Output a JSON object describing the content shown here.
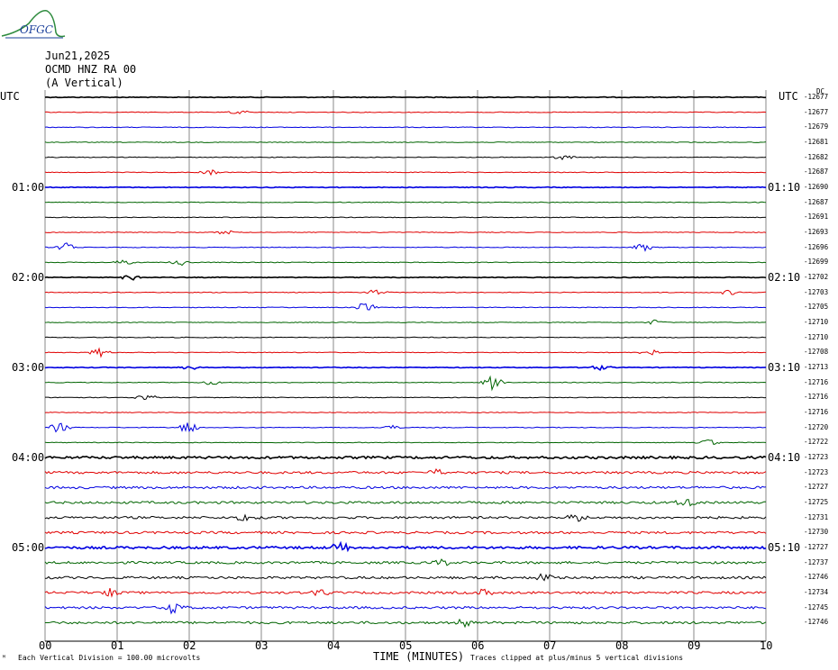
{
  "logo": {
    "text": "OFGC",
    "color": "#1a3f9a",
    "accent": "#2e8b3e"
  },
  "header": {
    "date": "Jun21,2025",
    "station": "OCMD HNZ RA 00",
    "component": "(A Vertical)"
  },
  "utc_left_label": "UTC",
  "utc_right_label": "UTC",
  "dc_label": "DC",
  "left_times": [
    "01:00",
    "02:00",
    "03:00",
    "04:00",
    "05:00"
  ],
  "right_times": [
    "01:10",
    "02:10",
    "03:10",
    "04:10",
    "05:10"
  ],
  "offsets": [
    "-12677",
    "-12677",
    "-12679",
    "-12681",
    "-12682",
    "-12687",
    "-12690",
    "-12687",
    "-12691",
    "-12693",
    "-12696",
    "-12699",
    "-12702",
    "-12703",
    "-12705",
    "-12710",
    "-12710",
    "-12708",
    "-12713",
    "-12716",
    "-12716",
    "-12716",
    "-12720",
    "-12722",
    "-12723",
    "-12723",
    "-12727",
    "-12725",
    "-12731",
    "-12730",
    "-12727",
    "-12737",
    "-12746",
    "-12734",
    "-12745",
    "-12746"
  ],
  "footer": {
    "scale_note": "Each Vertical Division =  100.00 microvolts",
    "axis_label": "TIME (MINUTES)",
    "clip_note": "Traces clipped at plus/minus 5 vertical divisions",
    "corner": "ᴹ"
  },
  "chart_data": {
    "type": "line",
    "title": "",
    "xlabel": "TIME (MINUTES)",
    "xlim": [
      0,
      10
    ],
    "x_ticks": [
      "00",
      "01",
      "02",
      "03",
      "04",
      "05",
      "06",
      "07",
      "08",
      "09",
      "10"
    ],
    "trace_count": 36,
    "trace_colors": [
      "#000000",
      "#e00000",
      "#0000e0",
      "#006400"
    ],
    "grid": true,
    "events": [
      {
        "trace": 1,
        "minute": 2.7,
        "amp": 3
      },
      {
        "trace": 4,
        "minute": 7.2,
        "amp": 3
      },
      {
        "trace": 5,
        "minute": 2.3,
        "amp": 3
      },
      {
        "trace": 9,
        "minute": 2.5,
        "amp": 3
      },
      {
        "trace": 10,
        "minute": 0.3,
        "amp": 5
      },
      {
        "trace": 10,
        "minute": 8.3,
        "amp": 5
      },
      {
        "trace": 11,
        "minute": 1.1,
        "amp": 3
      },
      {
        "trace": 11,
        "minute": 1.9,
        "amp": 4
      },
      {
        "trace": 12,
        "minute": 1.2,
        "amp": 4
      },
      {
        "trace": 13,
        "minute": 4.6,
        "amp": 4
      },
      {
        "trace": 13,
        "minute": 9.5,
        "amp": 3
      },
      {
        "trace": 14,
        "minute": 4.45,
        "amp": 6
      },
      {
        "trace": 15,
        "minute": 8.45,
        "amp": 3
      },
      {
        "trace": 17,
        "minute": 0.75,
        "amp": 5
      },
      {
        "trace": 17,
        "minute": 8.4,
        "amp": 5
      },
      {
        "trace": 18,
        "minute": 2.0,
        "amp": 3
      },
      {
        "trace": 18,
        "minute": 7.7,
        "amp": 3
      },
      {
        "trace": 19,
        "minute": 6.2,
        "amp": 8
      },
      {
        "trace": 19,
        "minute": 2.3,
        "amp": 3
      },
      {
        "trace": 20,
        "minute": 1.4,
        "amp": 4
      },
      {
        "trace": 22,
        "minute": 0.2,
        "amp": 6
      },
      {
        "trace": 22,
        "minute": 2.0,
        "amp": 7
      },
      {
        "trace": 22,
        "minute": 4.8,
        "amp": 3
      },
      {
        "trace": 23,
        "minute": 9.2,
        "amp": 4
      },
      {
        "trace": 25,
        "minute": 5.4,
        "amp": 4
      },
      {
        "trace": 27,
        "minute": 8.9,
        "amp": 5
      },
      {
        "trace": 28,
        "minute": 2.8,
        "amp": 5
      },
      {
        "trace": 28,
        "minute": 7.4,
        "amp": 5
      },
      {
        "trace": 30,
        "minute": 4.1,
        "amp": 5
      },
      {
        "trace": 31,
        "minute": 5.5,
        "amp": 4
      },
      {
        "trace": 32,
        "minute": 6.9,
        "amp": 6
      },
      {
        "trace": 33,
        "minute": 0.9,
        "amp": 6
      },
      {
        "trace": 33,
        "minute": 3.8,
        "amp": 5
      },
      {
        "trace": 33,
        "minute": 6.1,
        "amp": 4
      },
      {
        "trace": 34,
        "minute": 1.8,
        "amp": 7
      },
      {
        "trace": 35,
        "minute": 5.8,
        "amp": 5
      }
    ]
  }
}
